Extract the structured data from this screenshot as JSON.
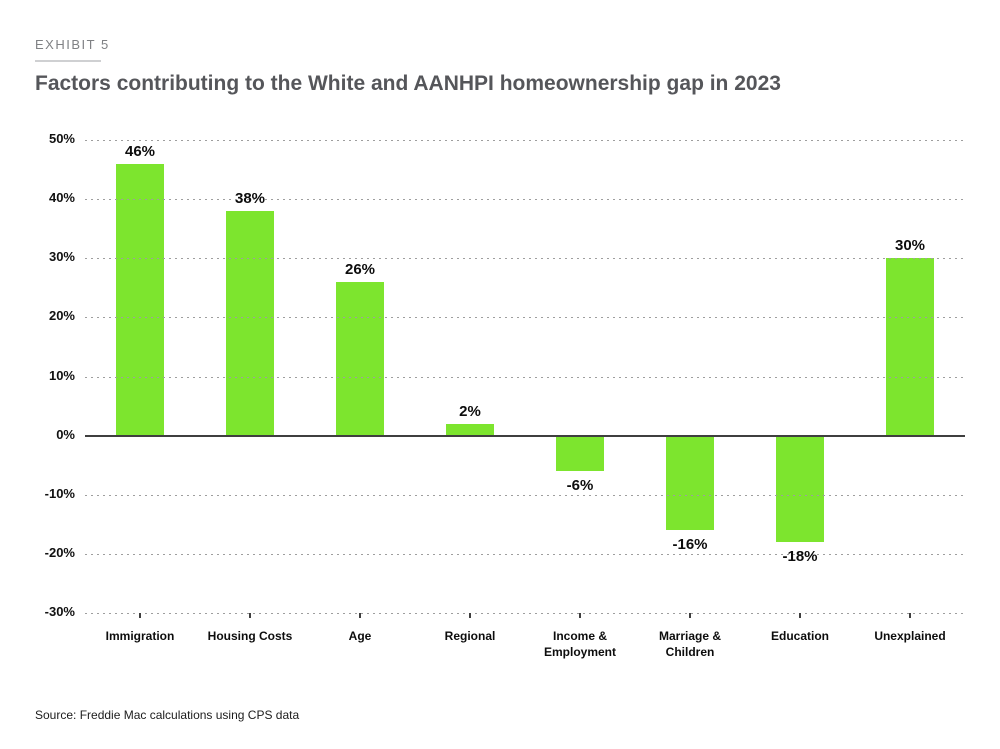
{
  "exhibit": {
    "label": "EXHIBIT 5"
  },
  "title": "Factors contributing to the White and AANHPI homeownership gap in 2023",
  "source": "Source: Freddie Mac calculations using CPS data",
  "chart_data": {
    "type": "bar",
    "title": "Factors contributing to the White and AANHPI homeownership gap in 2023",
    "categories": [
      "Immigration",
      "Housing Costs",
      "Age",
      "Regional",
      "Income &\nEmployment",
      "Marriage &\nChildren",
      "Education",
      "Unexplained"
    ],
    "values": [
      46,
      38,
      26,
      2,
      -6,
      -16,
      -18,
      30
    ],
    "labels": [
      "46%",
      "38%",
      "26%",
      "2%",
      "-6%",
      "-16%",
      "-18%",
      "30%"
    ],
    "xlabel": "",
    "ylabel": "",
    "ylim": [
      -30,
      50
    ],
    "yticks": [
      50,
      40,
      30,
      20,
      10,
      0,
      -10,
      -20,
      -30
    ],
    "ytick_labels": [
      "50%",
      "40%",
      "30%",
      "20%",
      "10%",
      "0%",
      "-10%",
      "-20%",
      "-30%"
    ],
    "bar_color": "#7de52e",
    "zero_line_color": "#3f3f3f",
    "grid": "horizontal-dashed",
    "legend": "none"
  }
}
